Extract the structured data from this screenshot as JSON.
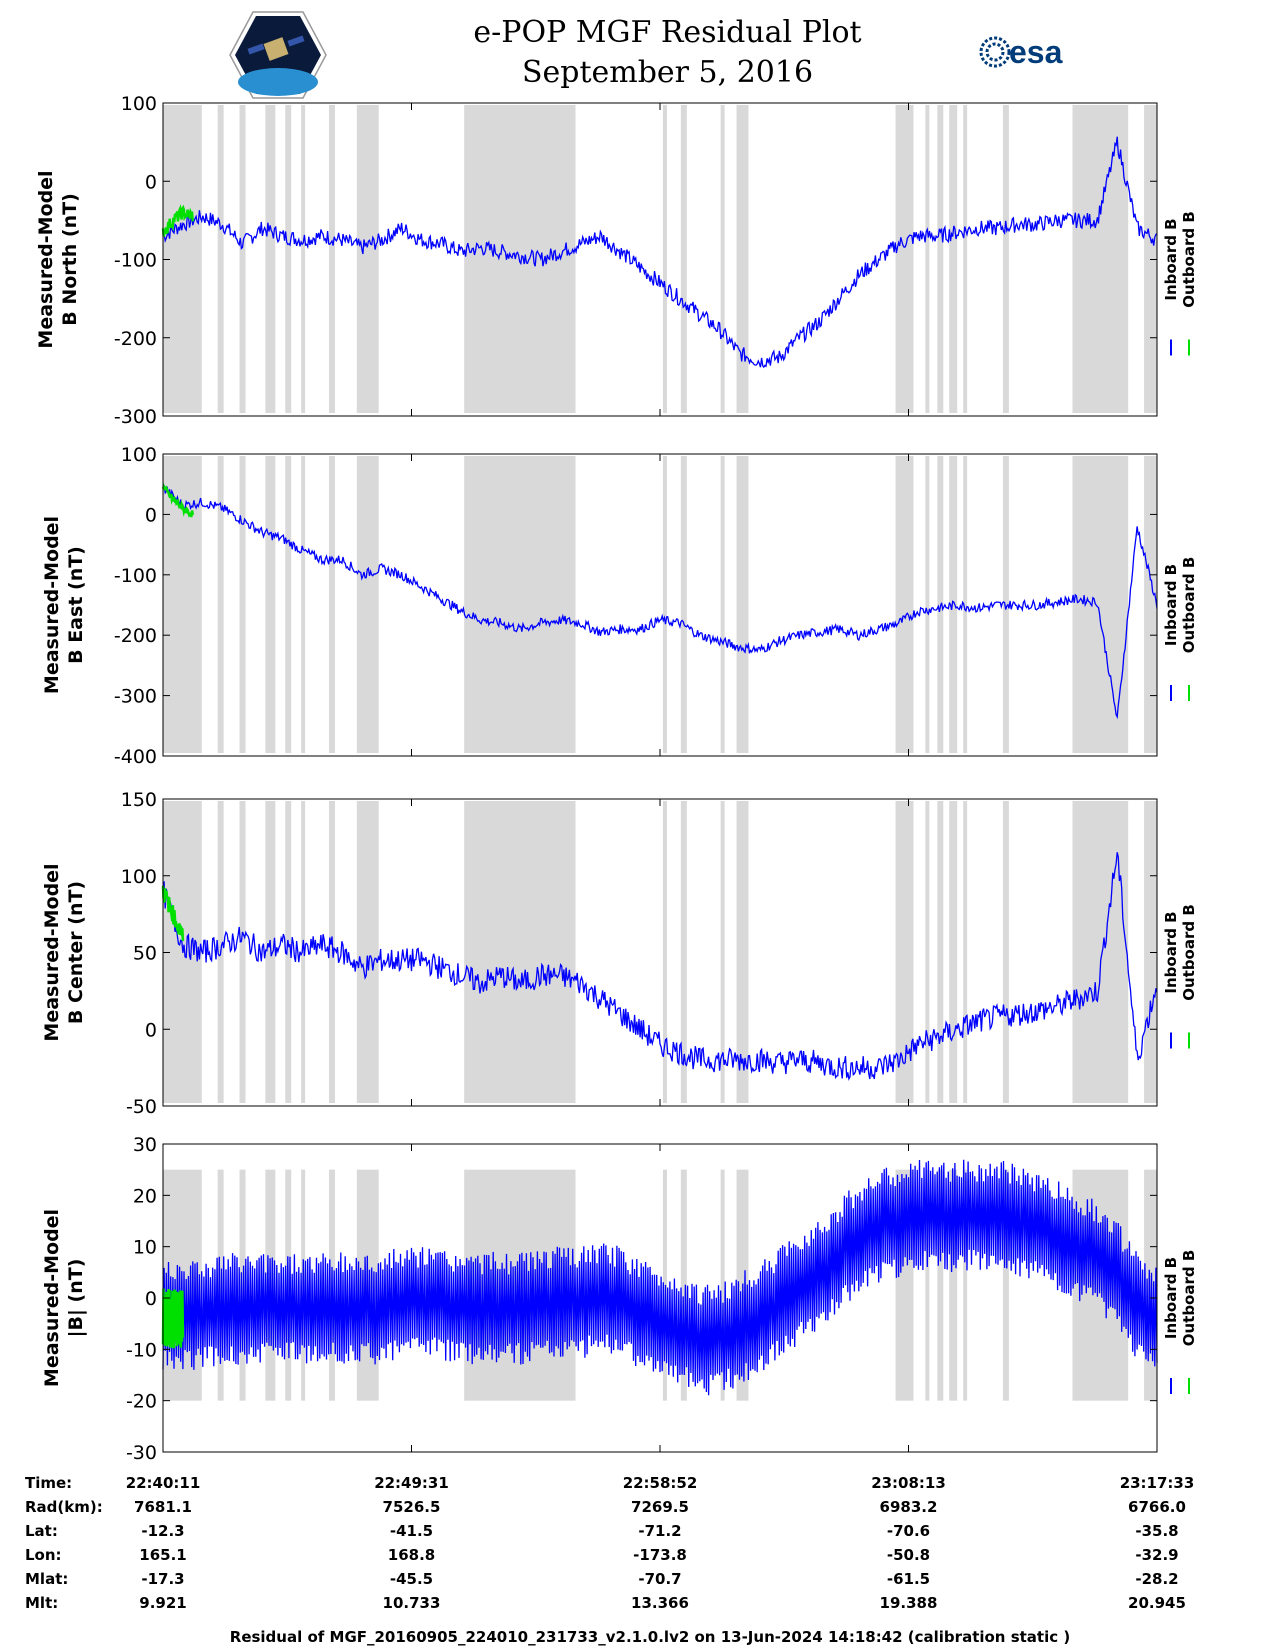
{
  "header": {
    "title_line1": "e-POP MGF Residual Plot",
    "title_line2": "September 5, 2016",
    "logo_left": "cassiope-mission-logo",
    "logo_right_text": "esa"
  },
  "colors": {
    "inboard": "#0000ff",
    "outboard": "#00e000",
    "gap": "#d9d9d9"
  },
  "chart_data": [
    {
      "type": "line",
      "ylabel": [
        "Measured-Model",
        "B North (nT)"
      ],
      "ylim": [
        -300,
        100
      ],
      "yticks": [
        -300,
        -200,
        -100,
        0,
        100
      ],
      "legend": [
        "Inboard B",
        "Outboard B"
      ],
      "series": [
        {
          "name": "Inboard B",
          "x": [
            0,
            2,
            4,
            6,
            8,
            10,
            12,
            14,
            16,
            18,
            20,
            22,
            24,
            26,
            28,
            30,
            32,
            34,
            36,
            38,
            40,
            42,
            44,
            46,
            48,
            50,
            52,
            54,
            56,
            58,
            60,
            62,
            64,
            66,
            68,
            70,
            72,
            74,
            76,
            78,
            80,
            82,
            84,
            86,
            88,
            90,
            92,
            94,
            96,
            98,
            100
          ],
          "y": [
            -70,
            -55,
            -45,
            -55,
            -80,
            -60,
            -70,
            -75,
            -70,
            -75,
            -85,
            -75,
            -60,
            -75,
            -80,
            -90,
            -85,
            -90,
            -95,
            -100,
            -90,
            -80,
            -70,
            -90,
            -110,
            -130,
            -150,
            -170,
            -190,
            -220,
            -230,
            -225,
            -200,
            -180,
            -150,
            -120,
            -100,
            -80,
            -70,
            -70,
            -65,
            -60,
            -60,
            -55,
            -55,
            -50,
            -50,
            -50,
            50,
            -60,
            -75
          ],
          "noise": 10
        },
        {
          "name": "Outboard B",
          "x": [
            0,
            1,
            2,
            3
          ],
          "y": [
            -65,
            -50,
            -40,
            -45
          ],
          "noise": 8
        }
      ]
    },
    {
      "type": "line",
      "ylabel": [
        "Measured-Model",
        "B East (nT)"
      ],
      "ylim": [
        -400,
        100
      ],
      "yticks": [
        -400,
        -300,
        -200,
        -100,
        0,
        100
      ],
      "legend": [
        "Inboard B",
        "Outboard B"
      ],
      "series": [
        {
          "name": "Inboard B",
          "x": [
            0,
            2,
            4,
            6,
            8,
            10,
            12,
            14,
            16,
            18,
            20,
            22,
            24,
            26,
            28,
            30,
            32,
            34,
            36,
            38,
            40,
            42,
            44,
            46,
            48,
            50,
            52,
            54,
            56,
            58,
            60,
            62,
            64,
            66,
            68,
            70,
            72,
            74,
            76,
            78,
            80,
            82,
            84,
            86,
            88,
            90,
            92,
            94,
            96,
            98,
            100
          ],
          "y": [
            45,
            15,
            20,
            10,
            -10,
            -30,
            -40,
            -60,
            -75,
            -75,
            -100,
            -90,
            -100,
            -120,
            -140,
            -160,
            -175,
            -180,
            -190,
            -180,
            -175,
            -180,
            -195,
            -190,
            -190,
            -175,
            -180,
            -200,
            -210,
            -220,
            -225,
            -210,
            -200,
            -195,
            -190,
            -200,
            -190,
            -180,
            -160,
            -155,
            -150,
            -155,
            -150,
            -150,
            -150,
            -145,
            -140,
            -145,
            -340,
            -20,
            -150
          ],
          "noise": 8
        },
        {
          "name": "Outboard B",
          "x": [
            0,
            1,
            2,
            3
          ],
          "y": [
            45,
            25,
            10,
            0
          ],
          "noise": 6
        }
      ]
    },
    {
      "type": "line",
      "ylabel": [
        "Measured-Model",
        "B Center (nT)"
      ],
      "ylim": [
        -50,
        150
      ],
      "yticks": [
        -50,
        0,
        50,
        100,
        150
      ],
      "legend": [
        "Inboard B",
        "Outboard B"
      ],
      "series": [
        {
          "name": "Inboard B",
          "x": [
            0,
            2,
            4,
            6,
            8,
            10,
            12,
            14,
            16,
            18,
            20,
            22,
            24,
            26,
            28,
            30,
            32,
            34,
            36,
            38,
            40,
            42,
            44,
            46,
            48,
            50,
            52,
            54,
            56,
            58,
            60,
            62,
            64,
            66,
            68,
            70,
            72,
            74,
            76,
            78,
            80,
            82,
            84,
            86,
            88,
            90,
            92,
            94,
            96,
            98,
            100
          ],
          "y": [
            90,
            55,
            50,
            55,
            60,
            50,
            55,
            50,
            55,
            50,
            40,
            45,
            45,
            45,
            40,
            35,
            30,
            35,
            30,
            35,
            35,
            30,
            20,
            10,
            0,
            -10,
            -15,
            -20,
            -20,
            -20,
            -20,
            -22,
            -20,
            -22,
            -25,
            -25,
            -25,
            -20,
            -10,
            -5,
            0,
            5,
            8,
            10,
            12,
            15,
            20,
            25,
            115,
            -20,
            30
          ],
          "noise": 8
        },
        {
          "name": "Outboard B",
          "x": [
            0,
            1,
            2
          ],
          "y": [
            90,
            75,
            60
          ],
          "noise": 6
        }
      ]
    },
    {
      "type": "line",
      "ylabel": [
        "Measured-Model",
        "|B| (nT)"
      ],
      "ylim": [
        -30,
        30
      ],
      "yticks": [
        -30,
        -20,
        -10,
        0,
        10,
        20,
        30
      ],
      "legend": [
        "Inboard B",
        "Outboard B"
      ],
      "series": [
        {
          "name": "Inboard B",
          "x": [
            0,
            2,
            4,
            6,
            8,
            10,
            12,
            14,
            16,
            18,
            20,
            22,
            24,
            26,
            28,
            30,
            32,
            34,
            36,
            38,
            40,
            42,
            44,
            46,
            48,
            50,
            52,
            54,
            56,
            58,
            60,
            62,
            64,
            66,
            68,
            70,
            72,
            74,
            76,
            78,
            80,
            82,
            84,
            86,
            88,
            90,
            92,
            94,
            96,
            98,
            100
          ],
          "y": [
            -3,
            -3,
            -3,
            -2,
            -2,
            -2,
            -2,
            -2,
            -2,
            -2,
            -2,
            -2,
            -1,
            -1,
            -1,
            -2,
            -2,
            -2,
            -2,
            -1,
            -1,
            -1,
            0,
            -1,
            -3,
            -5,
            -6,
            -8,
            -8,
            -6,
            -4,
            -1,
            2,
            5,
            8,
            12,
            14,
            15,
            16,
            16,
            16,
            16,
            16,
            15,
            14,
            12,
            10,
            8,
            4,
            -2,
            -5
          ],
          "amplitude": 11
        },
        {
          "name": "Outboard B",
          "x": [
            0,
            1,
            2
          ],
          "y": [
            -4,
            -4,
            -4
          ],
          "amplitude": 6
        }
      ]
    }
  ],
  "shading": {
    "note": "gray intervals in percent of time span",
    "intervals": [
      [
        0,
        3.9
      ],
      [
        5.5,
        6.1
      ],
      [
        7.7,
        8.3
      ],
      [
        10.3,
        11.3
      ],
      [
        12.3,
        12.9
      ],
      [
        13.9,
        14.3
      ],
      [
        16.7,
        17.3
      ],
      [
        19.5,
        21.7
      ],
      [
        30.3,
        41.5
      ],
      [
        50.3,
        50.7
      ],
      [
        52.1,
        52.7
      ],
      [
        56.1,
        56.5
      ],
      [
        57.7,
        58.9
      ],
      [
        73.7,
        75.5
      ],
      [
        76.7,
        77.1
      ],
      [
        77.9,
        78.5
      ],
      [
        79.1,
        79.9
      ],
      [
        80.5,
        80.9
      ],
      [
        84.5,
        85.1
      ],
      [
        91.5,
        97.1
      ],
      [
        98.7,
        100
      ]
    ]
  },
  "xticks_pct": [
    0,
    25,
    50,
    75,
    100
  ],
  "table": {
    "labels": [
      "Time:",
      "Rad(km):",
      "Lat:",
      "Lon:",
      "Mlat:",
      "Mlt:"
    ],
    "columns": [
      [
        "22:40:11",
        "7681.1",
        "-12.3",
        "165.1",
        "-17.3",
        "9.921"
      ],
      [
        "22:49:31",
        "7526.5",
        "-41.5",
        "168.8",
        "-45.5",
        "10.733"
      ],
      [
        "22:58:52",
        "7269.5",
        "-71.2",
        "-173.8",
        "-70.7",
        "13.366"
      ],
      [
        "23:08:13",
        "6983.2",
        "-70.6",
        "-50.8",
        "-61.5",
        "19.388"
      ],
      [
        "23:17:33",
        "6766.0",
        "-35.8",
        "-32.9",
        "-28.2",
        "20.945"
      ]
    ]
  },
  "footer": "Residual of MGF_20160905_224010_231733_v2.1.0.lv2 on 13-Jun-2024 14:18:42 (calibration static )"
}
